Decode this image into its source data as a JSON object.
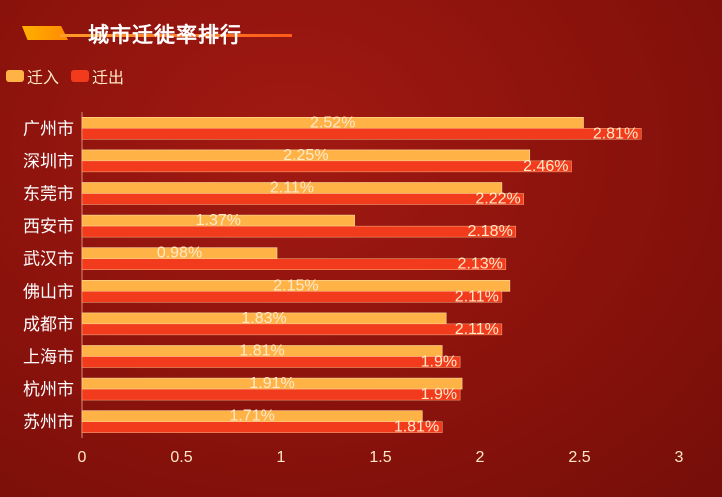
{
  "chart_data": {
    "type": "bar",
    "orientation": "horizontal",
    "title": "城市迁徙率排行",
    "categories": [
      "广州市",
      "深圳市",
      "东莞市",
      "西安市",
      "武汉市",
      "佛山市",
      "成都市",
      "上海市",
      "杭州市",
      "苏州市"
    ],
    "series": [
      {
        "name": "迁入",
        "color": "#ffb347",
        "values": [
          2.52,
          2.25,
          2.11,
          1.37,
          0.98,
          2.15,
          1.83,
          1.81,
          1.91,
          1.71
        ],
        "labels": [
          "2.52%",
          "2.25%",
          "2.11%",
          "1.37%",
          "0.98%",
          "2.15%",
          "1.83%",
          "1.81%",
          "1.91%",
          "1.71%"
        ]
      },
      {
        "name": "迁出",
        "color": "#f23a1c",
        "values": [
          2.81,
          2.46,
          2.22,
          2.18,
          2.13,
          2.11,
          2.11,
          1.9,
          1.9,
          1.81
        ],
        "labels": [
          "2.81%",
          "2.46%",
          "2.22%",
          "2.18%",
          "2.13%",
          "2.11%",
          "2.11%",
          "1.9%",
          "1.9%",
          "1.81%"
        ]
      }
    ],
    "xlim": [
      0,
      3
    ],
    "xticks": [
      "0",
      "0.5",
      "1",
      "1.5",
      "2",
      "2.5",
      "3"
    ],
    "legend_position": "top-left",
    "grid": false
  }
}
